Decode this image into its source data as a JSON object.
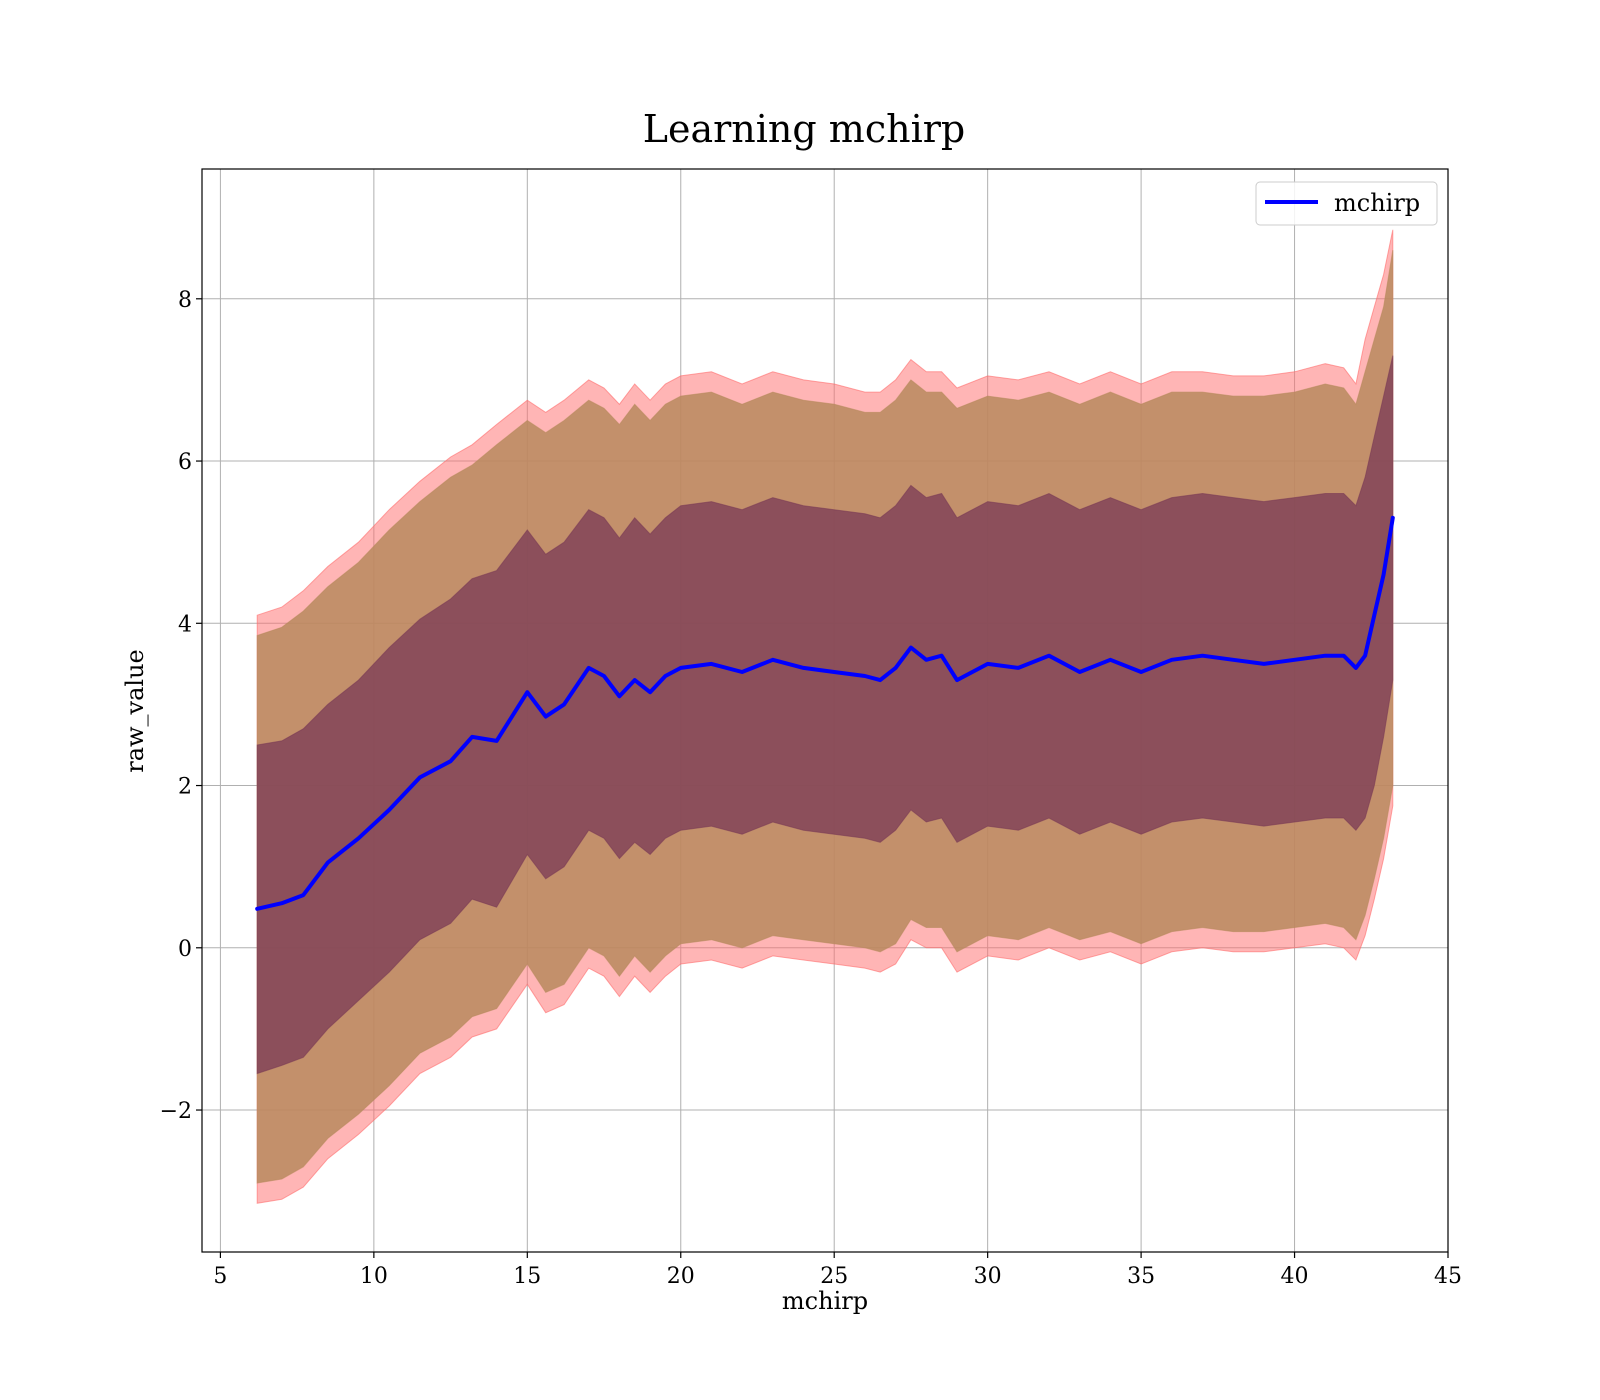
{
  "chart_data": {
    "type": "area",
    "title": "Learning mchirp",
    "xlabel": "mchirp",
    "ylabel": "raw_value",
    "xlim": [
      4.4,
      45
    ],
    "ylim": [
      -3.75,
      9.6
    ],
    "xticks": [
      {
        "value": 5,
        "label": "5"
      },
      {
        "value": 10,
        "label": "10"
      },
      {
        "value": 15,
        "label": "15"
      },
      {
        "value": 20,
        "label": "20"
      },
      {
        "value": 25,
        "label": "25"
      },
      {
        "value": 30,
        "label": "30"
      },
      {
        "value": 35,
        "label": "35"
      },
      {
        "value": 40,
        "label": "40"
      },
      {
        "value": 45,
        "label": "45"
      }
    ],
    "yticks": [
      {
        "value": -2,
        "label": "−2"
      },
      {
        "value": 0,
        "label": "0"
      },
      {
        "value": 2,
        "label": "2"
      },
      {
        "value": 4,
        "label": "4"
      },
      {
        "value": 6,
        "label": "6"
      },
      {
        "value": 8,
        "label": "8"
      }
    ],
    "grid": true,
    "legend": {
      "position": "top-right",
      "entries": [
        {
          "label": "mchirp",
          "color": "#0000ff"
        }
      ]
    },
    "colors": {
      "line": "#0000ff",
      "band_outer": "#ff6b6b",
      "band_middle": "#b88a5e",
      "band_inner": "#7a3a55"
    },
    "x": [
      6.2,
      7.0,
      7.7,
      8.5,
      9.5,
      10.5,
      11.5,
      12.5,
      13.2,
      14.0,
      15.0,
      15.6,
      16.2,
      17.0,
      17.5,
      18.0,
      18.5,
      19.0,
      19.5,
      20.0,
      21.0,
      22.0,
      23.0,
      24.0,
      25.0,
      26.0,
      26.5,
      27.0,
      27.5,
      28.0,
      28.5,
      29.0,
      30.0,
      31.0,
      32.0,
      33.0,
      34.0,
      35.0,
      36.0,
      37.0,
      38.0,
      39.0,
      40.0,
      41.0,
      41.6,
      42.0,
      42.3,
      42.6,
      42.9,
      43.2
    ],
    "series": [
      {
        "name": "mchirp",
        "values": [
          0.48,
          0.55,
          0.65,
          1.05,
          1.35,
          1.7,
          2.1,
          2.3,
          2.6,
          2.55,
          3.15,
          2.85,
          3.0,
          3.45,
          3.35,
          3.1,
          3.3,
          3.15,
          3.35,
          3.45,
          3.5,
          3.4,
          3.55,
          3.45,
          3.4,
          3.35,
          3.3,
          3.45,
          3.7,
          3.55,
          3.6,
          3.3,
          3.5,
          3.45,
          3.6,
          3.4,
          3.55,
          3.4,
          3.55,
          3.6,
          3.55,
          3.5,
          3.55,
          3.6,
          3.6,
          3.45,
          3.6,
          4.1,
          4.6,
          5.3
        ]
      }
    ],
    "bands": [
      {
        "level": "outer",
        "upper": [
          4.1,
          4.2,
          4.4,
          4.7,
          5.0,
          5.4,
          5.75,
          6.05,
          6.2,
          6.45,
          6.75,
          6.6,
          6.75,
          7.0,
          6.9,
          6.7,
          6.95,
          6.75,
          6.95,
          7.05,
          7.1,
          6.95,
          7.1,
          7.0,
          6.95,
          6.85,
          6.85,
          7.0,
          7.25,
          7.1,
          7.1,
          6.9,
          7.05,
          7.0,
          7.1,
          6.95,
          7.1,
          6.95,
          7.1,
          7.1,
          7.05,
          7.05,
          7.1,
          7.2,
          7.15,
          6.95,
          7.5,
          7.9,
          8.3,
          8.85
        ],
        "lower": [
          -3.15,
          -3.1,
          -2.95,
          -2.6,
          -2.3,
          -1.95,
          -1.55,
          -1.35,
          -1.1,
          -1.0,
          -0.45,
          -0.8,
          -0.7,
          -0.25,
          -0.35,
          -0.6,
          -0.35,
          -0.55,
          -0.35,
          -0.2,
          -0.15,
          -0.25,
          -0.1,
          -0.15,
          -0.2,
          -0.25,
          -0.3,
          -0.2,
          0.1,
          0.0,
          0.0,
          -0.3,
          -0.1,
          -0.15,
          0.0,
          -0.15,
          -0.05,
          -0.2,
          -0.05,
          0.0,
          -0.05,
          -0.05,
          0.0,
          0.05,
          0.0,
          -0.15,
          0.15,
          0.6,
          1.1,
          1.75
        ]
      },
      {
        "level": "middle",
        "upper": [
          3.85,
          3.95,
          4.15,
          4.45,
          4.75,
          5.15,
          5.5,
          5.8,
          5.95,
          6.2,
          6.5,
          6.35,
          6.5,
          6.75,
          6.65,
          6.45,
          6.7,
          6.5,
          6.7,
          6.8,
          6.85,
          6.7,
          6.85,
          6.75,
          6.7,
          6.6,
          6.6,
          6.75,
          7.0,
          6.85,
          6.85,
          6.65,
          6.8,
          6.75,
          6.85,
          6.7,
          6.85,
          6.7,
          6.85,
          6.85,
          6.8,
          6.8,
          6.85,
          6.95,
          6.9,
          6.7,
          7.1,
          7.5,
          7.9,
          8.6
        ],
        "lower": [
          -2.9,
          -2.85,
          -2.7,
          -2.35,
          -2.05,
          -1.7,
          -1.3,
          -1.1,
          -0.85,
          -0.75,
          -0.2,
          -0.55,
          -0.45,
          0.0,
          -0.1,
          -0.35,
          -0.1,
          -0.3,
          -0.1,
          0.05,
          0.1,
          0.0,
          0.15,
          0.1,
          0.05,
          0.0,
          -0.05,
          0.05,
          0.35,
          0.25,
          0.25,
          -0.05,
          0.15,
          0.1,
          0.25,
          0.1,
          0.2,
          0.05,
          0.2,
          0.25,
          0.2,
          0.2,
          0.25,
          0.3,
          0.25,
          0.1,
          0.4,
          0.85,
          1.35,
          2.0
        ]
      },
      {
        "level": "inner",
        "upper": [
          2.5,
          2.55,
          2.7,
          3.0,
          3.3,
          3.7,
          4.05,
          4.3,
          4.55,
          4.65,
          5.15,
          4.85,
          5.0,
          5.4,
          5.3,
          5.05,
          5.3,
          5.1,
          5.3,
          5.45,
          5.5,
          5.4,
          5.55,
          5.45,
          5.4,
          5.35,
          5.3,
          5.45,
          5.7,
          5.55,
          5.6,
          5.3,
          5.5,
          5.45,
          5.6,
          5.4,
          5.55,
          5.4,
          5.55,
          5.6,
          5.55,
          5.5,
          5.55,
          5.6,
          5.6,
          5.45,
          5.8,
          6.3,
          6.8,
          7.3
        ],
        "lower": [
          -1.55,
          -1.45,
          -1.35,
          -1.0,
          -0.65,
          -0.3,
          0.1,
          0.3,
          0.6,
          0.5,
          1.15,
          0.85,
          1.0,
          1.45,
          1.35,
          1.1,
          1.3,
          1.15,
          1.35,
          1.45,
          1.5,
          1.4,
          1.55,
          1.45,
          1.4,
          1.35,
          1.3,
          1.45,
          1.7,
          1.55,
          1.6,
          1.3,
          1.5,
          1.45,
          1.6,
          1.4,
          1.55,
          1.4,
          1.55,
          1.6,
          1.55,
          1.5,
          1.55,
          1.6,
          1.6,
          1.45,
          1.6,
          2.0,
          2.6,
          3.3
        ]
      }
    ]
  }
}
